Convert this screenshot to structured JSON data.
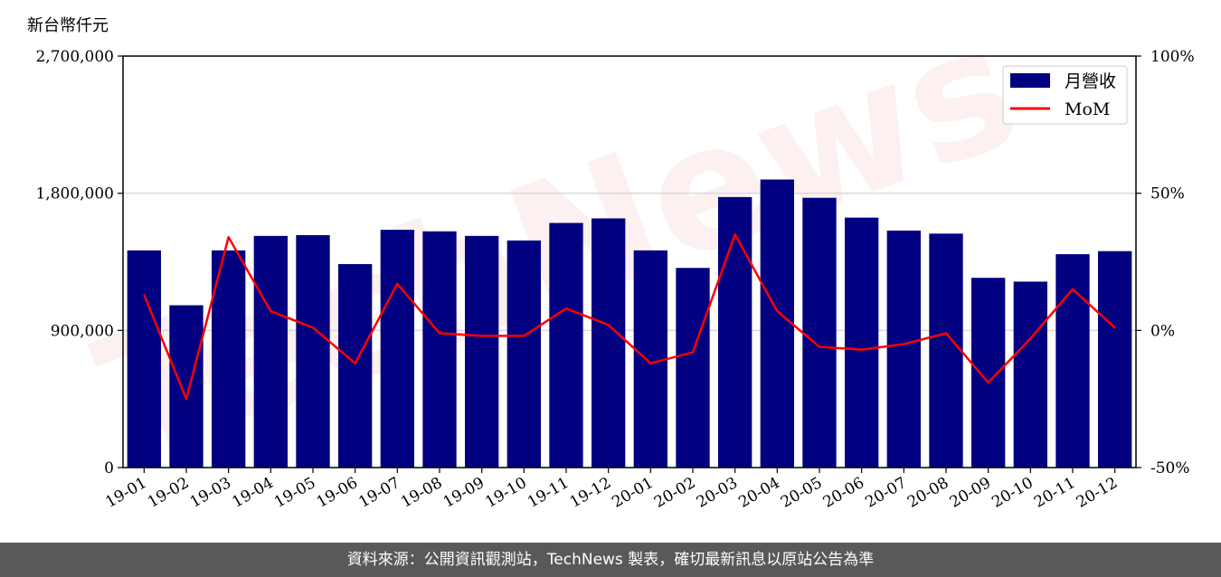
{
  "chart_data": {
    "type": "bar",
    "unit_label": "新台幣仟元",
    "categories": [
      "19-01",
      "19-02",
      "19-03",
      "19-04",
      "19-05",
      "19-06",
      "19-07",
      "19-08",
      "19-09",
      "19-10",
      "19-11",
      "19-12",
      "20-01",
      "20-02",
      "20-03",
      "20-04",
      "20-05",
      "20-06",
      "20-07",
      "20-08",
      "20-09",
      "20-10",
      "20-11",
      "20-12"
    ],
    "series": [
      {
        "name": "月營收",
        "axis": "left",
        "type": "bar",
        "color": "#000080",
        "values": [
          1425000,
          1065000,
          1425000,
          1520000,
          1525000,
          1335000,
          1560000,
          1550000,
          1520000,
          1490000,
          1605000,
          1635000,
          1425000,
          1310000,
          1775000,
          1890000,
          1770000,
          1640000,
          1555000,
          1535000,
          1245000,
          1220000,
          1400000,
          1420000
        ]
      },
      {
        "name": "MoM",
        "axis": "right",
        "type": "line",
        "color": "#ff0000",
        "values": [
          13,
          -25,
          34,
          7,
          1,
          -12,
          17,
          -1,
          -2,
          -2,
          8,
          2,
          -12,
          -8,
          35,
          7,
          -6,
          -7,
          -5,
          -1,
          -19,
          -3,
          15,
          1
        ]
      }
    ],
    "y_left": {
      "range": [
        0,
        2700000
      ],
      "ticks": [
        "0",
        "900,000",
        "1,800,000",
        "2,700,000"
      ],
      "tick_values": [
        0,
        900000,
        1800000,
        2700000
      ]
    },
    "y_right": {
      "range": [
        -50,
        100
      ],
      "ticks": [
        "-50%",
        "0%",
        "50%",
        "100%"
      ],
      "tick_values": [
        -50,
        0,
        50,
        100
      ]
    },
    "grid": "horizontal",
    "legend_position": "top-right",
    "watermark": "TechNews"
  },
  "footer": {
    "text": "資料來源：公開資訊觀測站，TechNews 製表，確切最新訊息以原站公告為準"
  }
}
